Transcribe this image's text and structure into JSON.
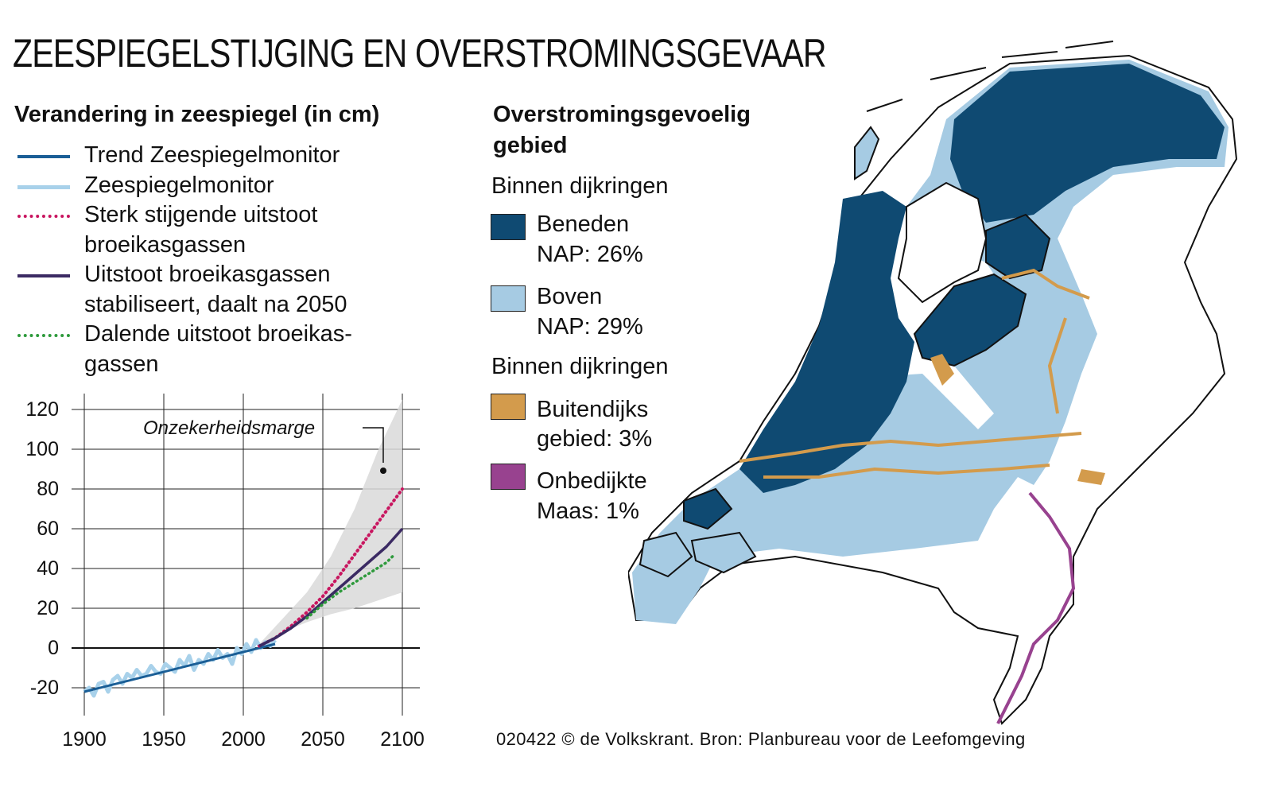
{
  "title": "ZEESPIEGELSTIJGING EN OVERSTROMINGSGEVAAR",
  "chart_heading": "Verandering in zeespiegel (in cm)",
  "legend": [
    {
      "label": "Trend Zeespiegelmonitor",
      "color": "#1a5e96",
      "style": "solid"
    },
    {
      "label": "Zeespiegelmonitor",
      "color": "#a8d1ea",
      "style": "solid"
    },
    {
      "label": "Sterk stijgende uitstoot broeikasgassen",
      "color": "#c8155f",
      "style": "dotted"
    },
    {
      "label": "Uitstoot broeikasgassen stabiliseert, daalt na 2050",
      "color": "#3b2a63",
      "style": "solid"
    },
    {
      "label": "Dalende uitstoot broeikas- gassen",
      "color": "#2e9a3c",
      "style": "dotted"
    }
  ],
  "chart_data": {
    "type": "line",
    "annotation": "Onzekerheidsmarge",
    "xlim": [
      1900,
      2100
    ],
    "ylim": [
      -30,
      130
    ],
    "x_ticks": [
      1900,
      1950,
      2000,
      2050,
      2100
    ],
    "y_ticks": [
      -20,
      0,
      20,
      40,
      60,
      80,
      100,
      120
    ],
    "grid": true,
    "uncertainty_band": {
      "x": [
        2010,
        2025,
        2040,
        2055,
        2070,
        2085,
        2100
      ],
      "lower": [
        0,
        8,
        13,
        17,
        20,
        24,
        28
      ],
      "upper": [
        2,
        15,
        28,
        46,
        70,
        100,
        125
      ]
    },
    "series": [
      {
        "name": "Zeespiegelmonitor",
        "color": "#a8d1ea",
        "x": [
          1900,
          1903,
          1906,
          1909,
          1912,
          1915,
          1918,
          1921,
          1924,
          1927,
          1930,
          1933,
          1936,
          1939,
          1942,
          1945,
          1948,
          1951,
          1954,
          1957,
          1960,
          1963,
          1966,
          1969,
          1972,
          1975,
          1978,
          1981,
          1984,
          1987,
          1990,
          1993,
          1996,
          1999,
          2002,
          2005,
          2008,
          2011,
          2014,
          2017,
          2020
        ],
        "values": [
          -22,
          -20,
          -24,
          -18,
          -17,
          -22,
          -16,
          -14,
          -18,
          -13,
          -15,
          -11,
          -14,
          -13,
          -9,
          -12,
          -13,
          -8,
          -10,
          -12,
          -6,
          -9,
          -4,
          -11,
          -6,
          -8,
          -3,
          -6,
          -1,
          -5,
          -3,
          -8,
          0,
          -3,
          2,
          -2,
          4,
          0,
          3,
          1,
          4
        ]
      },
      {
        "name": "Trend Zeespiegelmonitor",
        "color": "#1a5e96",
        "x": [
          1900,
          2020
        ],
        "values": [
          -22,
          2
        ]
      },
      {
        "name": "Sterk stijgende uitstoot broeikasgassen",
        "color": "#c8155f",
        "x": [
          2010,
          2020,
          2030,
          2040,
          2050,
          2060,
          2070,
          2080,
          2090,
          2100
        ],
        "values": [
          1,
          5,
          11,
          18,
          26,
          36,
          47,
          58,
          69,
          80
        ]
      },
      {
        "name": "Uitstoot broeikasgassen stabiliseert, daalt na 2050",
        "color": "#3b2a63",
        "x": [
          2010,
          2020,
          2030,
          2040,
          2050,
          2060,
          2070,
          2080,
          2090,
          2100
        ],
        "values": [
          1,
          5,
          10,
          16,
          23,
          30,
          37,
          44,
          51,
          60
        ]
      },
      {
        "name": "Dalende uitstoot broeikas- gassen",
        "color": "#2e9a3c",
        "x": [
          2040,
          2050,
          2060,
          2070,
          2080,
          2090,
          2095
        ],
        "values": [
          15,
          22,
          28,
          33,
          38,
          43,
          47
        ]
      }
    ]
  },
  "map": {
    "heading_line1": "Overstromingsgevoelig",
    "heading_line2": "gebied",
    "group1": "Binnen dijkringen",
    "group2": "Binnen dijkringen",
    "items": [
      {
        "line1": "Beneden",
        "line2": "NAP: 26%",
        "color": "#0f4a72"
      },
      {
        "line1": "Boven",
        "line2": "NAP: 29%",
        "color": "#a6cbe3"
      },
      {
        "line1": "Buitendijks",
        "line2": "gebied: 3%",
        "color": "#d39b4c"
      },
      {
        "line1": "Onbedijkte",
        "line2": "Maas: 1%",
        "color": "#98428f"
      }
    ],
    "colors": {
      "land": "#ffffff",
      "border": "#111111"
    }
  },
  "credit": "020422 © de Volkskrant. Bron: Planbureau voor de Leefomgeving"
}
